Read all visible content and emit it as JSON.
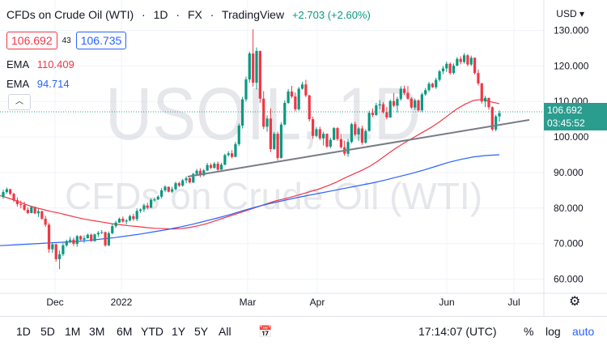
{
  "header": {
    "symbol": "CFDs on Crude Oil (WTI)",
    "interval": "1D",
    "exchange": "FX",
    "source": "TradingView",
    "change": "+2.703 (+2.60%)",
    "currency": "USD",
    "dot_separator": "·"
  },
  "quote": {
    "bid": "106.692",
    "spread": "43",
    "ask": "106.735"
  },
  "ema_red": {
    "label": "EMA",
    "value": "110.409",
    "color": "#f23645"
  },
  "ema_blue": {
    "label": "EMA",
    "value": "94.714",
    "color": "#2962ff"
  },
  "collapse_icon": "chevron-up-icon",
  "watermark": {
    "line1": "USOIL, 1D",
    "line2": "CFDs on Crude Oil (WTI)"
  },
  "price_scale": {
    "ticks": [
      "130.000",
      "120.000",
      "110.000",
      "100.000",
      "90.000",
      "80.000",
      "70.000",
      "60.000"
    ],
    "last_price": "106.692",
    "countdown": "03:45:52",
    "tag_color": "#2a9d8f"
  },
  "time_scale": {
    "ticks": [
      "Dec",
      "2022",
      "Mar",
      "Apr",
      "Jun",
      "Jul"
    ]
  },
  "toolbar": {
    "timeframes": [
      "1D",
      "5D",
      "1M",
      "3M",
      "6M",
      "YTD",
      "1Y",
      "5Y",
      "All"
    ],
    "time": "17:14:07 (UTC)",
    "percent": "%",
    "log": "log",
    "auto": "auto"
  },
  "colors": {
    "up": "#089981",
    "down": "#f23645",
    "trendline": "#787b86"
  },
  "chart_data": {
    "type": "candlestick",
    "y_range": [
      56,
      134
    ],
    "ohlc": [
      [
        83.1,
        85.2,
        82.6,
        84.5
      ],
      [
        84.5,
        85.8,
        84.1,
        85.3
      ],
      [
        85.3,
        85.4,
        83.6,
        84.0
      ],
      [
        84.0,
        84.3,
        81.7,
        82.2
      ],
      [
        82.2,
        83.0,
        80.4,
        81.1
      ],
      [
        81.1,
        82.1,
        79.9,
        80.9
      ],
      [
        80.9,
        81.8,
        79.2,
        79.5
      ],
      [
        79.5,
        80.2,
        78.3,
        78.6
      ],
      [
        78.6,
        80.6,
        78.5,
        80.3
      ],
      [
        80.3,
        80.4,
        78.3,
        78.5
      ],
      [
        78.5,
        79.8,
        77.5,
        79.1
      ],
      [
        79.1,
        79.3,
        76.7,
        77.0
      ],
      [
        77.0,
        77.8,
        74.7,
        75.3
      ],
      [
        75.3,
        75.8,
        67.4,
        68.4
      ],
      [
        68.4,
        70.3,
        67.4,
        69.8
      ],
      [
        69.8,
        70.0,
        64.9,
        65.6
      ],
      [
        65.6,
        68.0,
        62.8,
        67.0
      ],
      [
        67.0,
        70.1,
        66.5,
        69.5
      ],
      [
        69.5,
        71.1,
        69.1,
        70.7
      ],
      [
        70.7,
        71.9,
        70.1,
        71.1
      ],
      [
        71.1,
        71.7,
        69.3,
        69.9
      ],
      [
        69.9,
        72.4,
        69.1,
        72.1
      ],
      [
        72.1,
        72.3,
        70.9,
        71.1
      ],
      [
        71.1,
        72.3,
        70.2,
        71.5
      ],
      [
        71.5,
        72.8,
        71.4,
        72.5
      ],
      [
        72.5,
        72.8,
        70.5,
        70.7
      ],
      [
        70.7,
        72.8,
        70.5,
        72.6
      ],
      [
        72.6,
        73.5,
        71.8,
        73.0
      ],
      [
        73.0,
        73.8,
        72.7,
        73.2
      ],
      [
        73.2,
        73.4,
        69.1,
        69.5
      ],
      [
        69.5,
        73.4,
        69.3,
        72.9
      ],
      [
        72.9,
        75.5,
        72.6,
        74.9
      ],
      [
        74.9,
        76.4,
        74.4,
        75.9
      ],
      [
        75.9,
        77.3,
        75.8,
        77.0
      ],
      [
        77.0,
        77.6,
        75.9,
        76.2
      ],
      [
        76.2,
        76.9,
        75.4,
        76.5
      ],
      [
        76.5,
        78.1,
        76.3,
        77.7
      ],
      [
        77.7,
        78.4,
        76.4,
        76.9
      ],
      [
        76.9,
        79.9,
        76.3,
        79.2
      ],
      [
        79.2,
        79.9,
        78.7,
        79.6
      ],
      [
        79.6,
        81.2,
        78.9,
        80.7
      ],
      [
        80.7,
        81.5,
        79.6,
        80.1
      ],
      [
        80.1,
        82.7,
        80.0,
        82.3
      ],
      [
        82.3,
        83.0,
        81.8,
        82.4
      ],
      [
        82.4,
        83.6,
        82.2,
        83.2
      ],
      [
        83.2,
        85.6,
        82.7,
        85.0
      ],
      [
        85.0,
        86.4,
        84.5,
        86.0
      ],
      [
        86.0,
        86.0,
        84.4,
        84.6
      ],
      [
        84.6,
        86.0,
        84.2,
        85.3
      ],
      [
        85.3,
        87.4,
        85.0,
        87.0
      ],
      [
        87.0,
        87.4,
        85.9,
        86.3
      ],
      [
        86.3,
        88.2,
        86.0,
        87.8
      ],
      [
        87.8,
        88.9,
        87.0,
        88.4
      ],
      [
        88.4,
        88.6,
        86.9,
        87.2
      ],
      [
        87.2,
        89.9,
        87.0,
        89.6
      ],
      [
        89.6,
        91.0,
        89.0,
        90.5
      ],
      [
        90.5,
        91.2,
        88.7,
        89.2
      ],
      [
        89.2,
        91.0,
        88.9,
        90.6
      ],
      [
        90.6,
        92.7,
        90.4,
        92.1
      ],
      [
        92.1,
        92.6,
        91.0,
        91.3
      ],
      [
        91.3,
        93.0,
        91.1,
        92.5
      ],
      [
        92.5,
        93.1,
        90.4,
        90.8
      ],
      [
        90.8,
        92.7,
        90.7,
        92.2
      ],
      [
        92.2,
        95.3,
        92.0,
        94.9
      ],
      [
        94.9,
        96.0,
        94.5,
        95.4
      ],
      [
        95.4,
        96.3,
        94.0,
        94.4
      ],
      [
        94.4,
        98.6,
        94.3,
        98.0
      ],
      [
        98.0,
        103.8,
        97.5,
        103.2
      ],
      [
        103.2,
        111.3,
        102.4,
        110.6
      ],
      [
        110.6,
        117.0,
        110.0,
        116.2
      ],
      [
        116.2,
        124.0,
        115.3,
        123.5
      ],
      [
        123.5,
        130.3,
        114.2,
        115.3
      ],
      [
        115.3,
        125.2,
        113.4,
        124.2
      ],
      [
        124.2,
        124.3,
        109.6,
        110.8
      ],
      [
        110.8,
        112.9,
        102.2,
        102.9
      ],
      [
        102.9,
        106.1,
        101.5,
        105.2
      ],
      [
        105.2,
        108.1,
        95.8,
        96.6
      ],
      [
        96.6,
        101.4,
        96.4,
        100.9
      ],
      [
        100.9,
        101.5,
        93.4,
        94.1
      ],
      [
        94.1,
        104.1,
        93.9,
        103.5
      ],
      [
        103.5,
        110.3,
        103.3,
        109.6
      ],
      [
        109.6,
        113.5,
        109.3,
        112.8
      ],
      [
        112.8,
        114.4,
        110.9,
        111.4
      ],
      [
        111.4,
        112.5,
        107.2,
        107.8
      ],
      [
        107.8,
        114.1,
        107.4,
        113.6
      ],
      [
        113.6,
        115.5,
        113.3,
        114.8
      ],
      [
        114.8,
        116.1,
        111.2,
        111.7
      ],
      [
        111.7,
        111.9,
        104.4,
        105.0
      ],
      [
        105.0,
        105.7,
        99.5,
        100.3
      ],
      [
        100.3,
        102.8,
        99.9,
        102.2
      ],
      [
        102.2,
        102.9,
        99.1,
        99.6
      ],
      [
        99.6,
        101.5,
        97.6,
        100.9
      ],
      [
        100.9,
        101.0,
        96.9,
        97.3
      ],
      [
        97.3,
        99.8,
        96.8,
        99.2
      ],
      [
        99.2,
        102.8,
        99.1,
        102.5
      ],
      [
        102.5,
        102.8,
        98.9,
        99.4
      ],
      [
        99.4,
        100.9,
        96.7,
        97.1
      ],
      [
        97.1,
        99.0,
        94.7,
        95.3
      ],
      [
        95.3,
        99.4,
        94.4,
        98.6
      ],
      [
        98.6,
        104.0,
        98.2,
        103.6
      ],
      [
        103.6,
        104.3,
        100.2,
        100.7
      ],
      [
        100.7,
        102.8,
        98.9,
        102.4
      ],
      [
        102.4,
        103.2,
        97.8,
        98.4
      ],
      [
        98.4,
        102.2,
        98.1,
        101.7
      ],
      [
        101.7,
        107.4,
        101.5,
        106.8
      ],
      [
        106.8,
        108.0,
        105.6,
        106.2
      ],
      [
        106.2,
        109.6,
        105.9,
        108.9
      ],
      [
        108.9,
        110.4,
        107.8,
        109.2
      ],
      [
        109.2,
        109.8,
        106.6,
        107.0
      ],
      [
        107.0,
        108.5,
        105.0,
        105.5
      ],
      [
        105.5,
        110.5,
        105.4,
        110.1
      ],
      [
        110.1,
        112.4,
        108.4,
        108.8
      ],
      [
        108.8,
        111.3,
        106.9,
        110.7
      ],
      [
        110.7,
        114.3,
        110.2,
        113.6
      ],
      [
        113.6,
        114.5,
        111.9,
        112.4
      ],
      [
        112.4,
        114.3,
        110.5,
        110.8
      ],
      [
        110.8,
        111.2,
        107.9,
        108.3
      ],
      [
        108.3,
        110.8,
        107.6,
        110.3
      ],
      [
        110.3,
        110.6,
        107.2,
        107.5
      ],
      [
        107.5,
        112.5,
        107.0,
        112.0
      ],
      [
        112.0,
        113.8,
        111.6,
        113.2
      ],
      [
        113.2,
        115.5,
        112.7,
        115.0
      ],
      [
        115.0,
        115.3,
        113.8,
        114.0
      ],
      [
        114.0,
        116.7,
        113.5,
        116.1
      ],
      [
        116.1,
        118.9,
        115.6,
        118.5
      ],
      [
        118.5,
        120.0,
        117.7,
        119.3
      ],
      [
        119.3,
        121.2,
        118.3,
        120.6
      ],
      [
        120.6,
        121.0,
        117.5,
        118.0
      ],
      [
        118.0,
        120.7,
        117.6,
        120.1
      ],
      [
        120.1,
        122.5,
        119.9,
        122.0
      ],
      [
        122.0,
        122.7,
        120.5,
        121.1
      ],
      [
        121.1,
        123.6,
        120.7,
        123.0
      ],
      [
        123.0,
        123.3,
        119.9,
        120.4
      ],
      [
        120.4,
        122.9,
        120.0,
        122.3
      ],
      [
        122.3,
        122.4,
        117.6,
        118.0
      ],
      [
        118.0,
        119.0,
        114.5,
        115.1
      ],
      [
        115.1,
        115.2,
        109.4,
        110.0
      ],
      [
        110.0,
        111.6,
        108.4,
        111.0
      ],
      [
        111.0,
        111.1,
        107.7,
        108.4
      ],
      [
        108.4,
        108.6,
        101.7,
        102.1
      ],
      [
        102.1,
        106.3,
        101.6,
        105.8
      ],
      [
        105.8,
        107.5,
        104.3,
        106.7
      ]
    ],
    "series": [
      {
        "name": "EMA",
        "values": [
          83.5,
          82.8,
          81.9,
          81.0,
          80.2,
          79.6,
          79.0,
          78.5,
          77.9,
          77.3,
          76.8,
          76.4,
          76.0,
          75.6,
          75.3,
          75.0,
          74.8,
          74.5,
          74.3,
          74.2,
          74.1,
          74.2,
          74.5,
          75.0,
          75.6,
          76.4,
          77.2,
          78.0,
          78.8,
          79.6,
          80.4,
          81.2,
          82.0,
          82.6,
          83.2,
          83.9,
          84.6,
          85.3,
          86.2,
          87.2,
          88.4,
          89.5,
          90.6,
          91.8,
          93.4,
          95.2,
          96.9,
          98.4,
          99.8,
          101.2,
          102.6,
          104.2,
          106.0,
          107.8,
          109.2,
          110.3,
          110.6,
          109.9,
          109.4
        ]
      },
      {
        "name": "EMA",
        "values": [
          69.4,
          69.6,
          69.8,
          70.0,
          70.2,
          70.4,
          70.6,
          70.9,
          71.3,
          71.7,
          72.2,
          72.7,
          73.3,
          73.9,
          74.6,
          75.4,
          76.3,
          77.2,
          78.2,
          79.3,
          80.3,
          81.2,
          82.0,
          82.8,
          83.5,
          84.2,
          84.9,
          85.6,
          86.3,
          87.0,
          87.8,
          88.7,
          89.6,
          90.6,
          91.7,
          92.8,
          93.7,
          94.4,
          94.8,
          95.0
        ]
      }
    ]
  }
}
